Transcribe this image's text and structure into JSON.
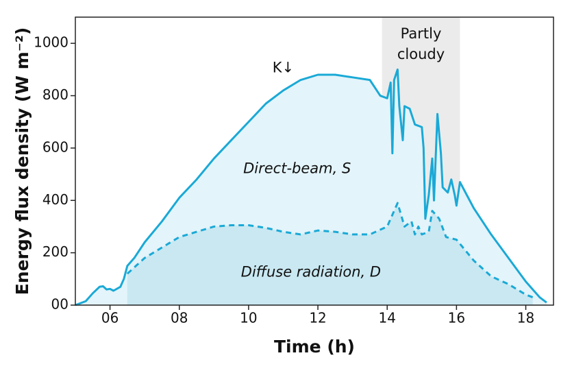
{
  "chart_data": {
    "type": "line",
    "x_label": "Time (h)",
    "y_label": "Energy flux density (W m⁻²)",
    "xlim": [
      5,
      18.8
    ],
    "ylim": [
      0,
      1100
    ],
    "xticks": [
      {
        "value": 6,
        "label": "06"
      },
      {
        "value": 8,
        "label": "08"
      },
      {
        "value": 10,
        "label": "10"
      },
      {
        "value": 12,
        "label": "12"
      },
      {
        "value": 14,
        "label": "14"
      },
      {
        "value": 16,
        "label": "16"
      },
      {
        "value": 18,
        "label": "18"
      }
    ],
    "yticks": [
      {
        "value": 0,
        "label": "00"
      },
      200,
      400,
      600,
      800,
      1000
    ],
    "shaded_region": {
      "x": [
        13.85,
        16.1
      ],
      "label": [
        "Partly",
        "cloudy"
      ],
      "color": "#ebebeb"
    },
    "annotations": [
      {
        "text": "K↓",
        "x": 11.0,
        "y": 905
      },
      {
        "text": "Direct-beam, S",
        "x": 11.4,
        "y": 520
      },
      {
        "text": "Diffuse radiation, D",
        "x": 11.8,
        "y": 125
      }
    ],
    "series": [
      {
        "name": "K↓",
        "color": "#1aa9d6",
        "fill": "#e3f4fa",
        "dashed": false,
        "x": [
          5.0,
          5.3,
          5.5,
          5.7,
          5.8,
          5.9,
          6.0,
          6.1,
          6.3,
          6.4,
          6.5,
          6.7,
          7.0,
          7.5,
          8.0,
          8.5,
          9.0,
          9.5,
          10.0,
          10.5,
          11.0,
          11.5,
          12.0,
          12.5,
          13.0,
          13.5,
          13.8,
          14.0,
          14.1,
          14.15,
          14.2,
          14.3,
          14.35,
          14.45,
          14.5,
          14.65,
          14.8,
          15.0,
          15.05,
          15.1,
          15.2,
          15.3,
          15.35,
          15.45,
          15.55,
          15.6,
          15.75,
          15.85,
          15.95,
          16.0,
          16.1,
          16.3,
          16.5,
          17.0,
          17.5,
          18.0,
          18.2,
          18.4,
          18.6
        ],
        "values": [
          0,
          15,
          45,
          70,
          72,
          60,
          62,
          55,
          70,
          100,
          150,
          180,
          240,
          320,
          410,
          480,
          560,
          630,
          700,
          770,
          820,
          860,
          880,
          880,
          870,
          860,
          800,
          790,
          850,
          580,
          860,
          900,
          760,
          630,
          760,
          750,
          690,
          680,
          600,
          330,
          420,
          560,
          400,
          730,
          580,
          450,
          430,
          480,
          420,
          380,
          470,
          420,
          370,
          270,
          180,
          90,
          60,
          30,
          10
        ]
      },
      {
        "name": "D",
        "color": "#1aa9d6",
        "fill": "#c9e8f2",
        "dashed": true,
        "x": [
          6.5,
          7.0,
          7.5,
          8.0,
          8.5,
          9.0,
          9.5,
          10.0,
          10.5,
          11.0,
          11.5,
          12.0,
          12.5,
          13.0,
          13.5,
          14.0,
          14.3,
          14.5,
          14.7,
          14.8,
          14.9,
          15.0,
          15.2,
          15.3,
          15.5,
          15.7,
          16.0,
          16.5,
          17.0,
          17.5,
          18.0,
          18.2
        ],
        "values": [
          120,
          180,
          220,
          260,
          280,
          300,
          305,
          305,
          295,
          280,
          270,
          285,
          280,
          270,
          270,
          300,
          390,
          300,
          320,
          270,
          300,
          270,
          280,
          360,
          330,
          260,
          250,
          170,
          110,
          80,
          40,
          30
        ]
      }
    ]
  }
}
